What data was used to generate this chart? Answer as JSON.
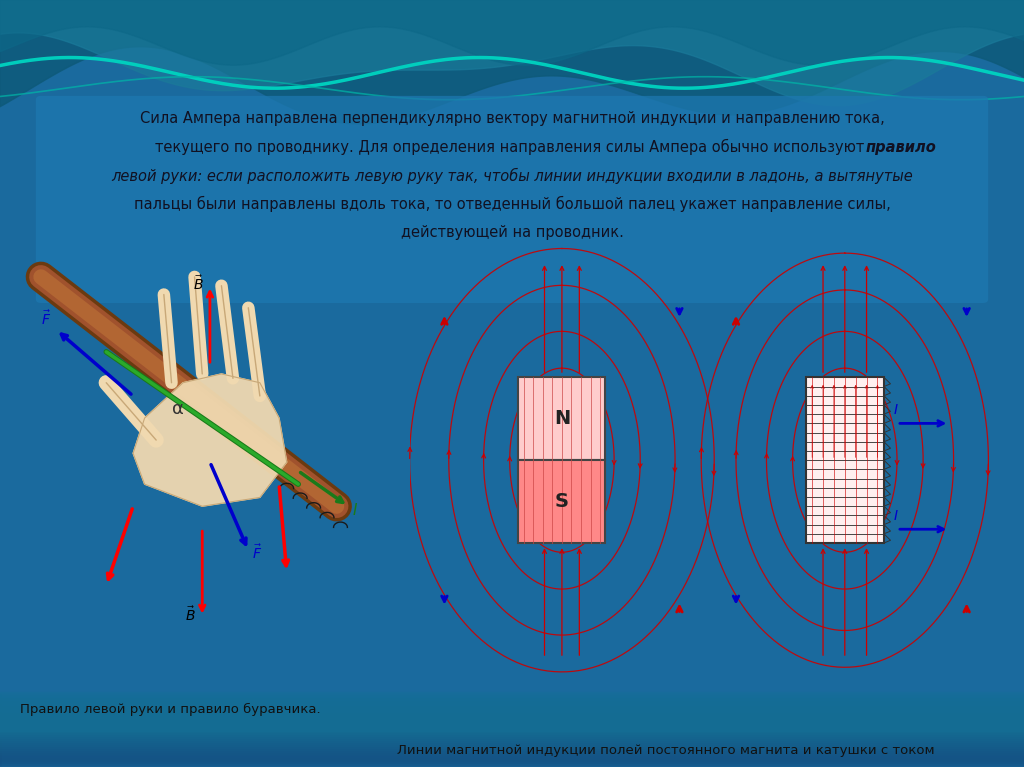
{
  "bg_color": "#1e6fa0",
  "text_line1": "Сила Ампера направлена перпендикулярно вектору магнитной индукции и направлению тока,",
  "text_line2": "текущего по проводнику. Для определения направления силы Ампера обычно используют правило",
  "text_line3": "левой руки: если расположить левую руку так, чтобы линии индукции входили в ладонь, а вытянутые",
  "text_line4": "пальцы были направлены вдоль тока, то отведенный большой палец укажет направление силы,",
  "text_line5": "действующей на проводник.",
  "caption_left": "Правило левой руки и правило буравчика.",
  "caption_right": "Линии магнитной индукции полей постоянного магнита и катушки с током",
  "left_panel_bg": "#f5f0c8",
  "right_panel_bg": "#fce8e8",
  "field_line_color": "#cc0000",
  "arrow_blue": "#0000cc",
  "magnet_n_color": "#ffcccc",
  "magnet_s_color": "#ff8888"
}
